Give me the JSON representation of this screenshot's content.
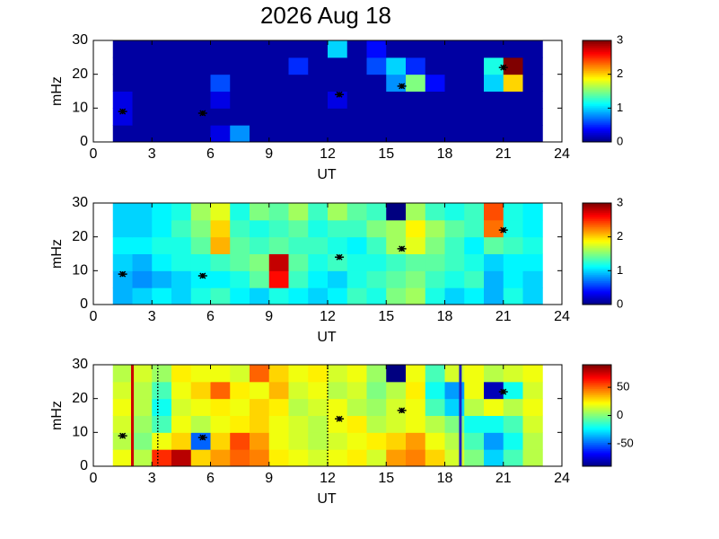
{
  "chart_data": [
    {
      "type": "heatmap",
      "title": "2026 Aug 18",
      "xlabel": "UT",
      "ylabel": "mHz",
      "colormap": "jet",
      "xlim": [
        0,
        24
      ],
      "xticks": [
        0,
        3,
        6,
        9,
        12,
        15,
        18,
        21,
        24
      ],
      "ylim": [
        0,
        30
      ],
      "yticks": [
        0,
        10,
        20,
        30
      ],
      "zlim": [
        0,
        3
      ],
      "zticks": [
        0,
        1,
        2,
        3
      ],
      "xbins": [
        1,
        2,
        3,
        4,
        5,
        6,
        7,
        8,
        9,
        10,
        11,
        12,
        13,
        14,
        15,
        16,
        17,
        18,
        19,
        20,
        21,
        22,
        23
      ],
      "ybins": [
        0,
        5,
        10,
        15,
        20,
        25,
        30
      ],
      "values": [
        [
          0.1,
          0.1,
          0.1,
          0.1,
          0.1,
          0.3,
          0.8,
          0.1,
          0.1,
          0.1,
          0.1,
          0.1,
          0.1,
          0.1,
          0.1,
          0.1,
          0.1,
          0.1,
          0.1,
          0.1,
          0.1,
          0.1
        ],
        [
          0.3,
          0.1,
          0.1,
          0.1,
          0.1,
          0.1,
          0.1,
          0.1,
          0.1,
          0.1,
          0.1,
          0.1,
          0.1,
          0.1,
          0.1,
          0.1,
          0.1,
          0.1,
          0.1,
          0.1,
          0.1,
          0.1
        ],
        [
          0.3,
          0.1,
          0.1,
          0.1,
          0.1,
          0.3,
          0.1,
          0.1,
          0.1,
          0.1,
          0.1,
          0.3,
          0.1,
          0.1,
          0.1,
          0.1,
          0.1,
          0.1,
          0.1,
          0.1,
          0.1,
          0.1
        ],
        [
          0.1,
          0.1,
          0.1,
          0.1,
          0.1,
          0.6,
          0.1,
          0.1,
          0.1,
          0.1,
          0.1,
          0.1,
          0.1,
          0.1,
          0.8,
          1.5,
          0.4,
          0.1,
          0.1,
          1.0,
          2.0,
          0.1
        ],
        [
          0.1,
          0.1,
          0.1,
          0.1,
          0.1,
          0.1,
          0.1,
          0.1,
          0.1,
          0.5,
          0.1,
          0.1,
          0.1,
          0.6,
          1.0,
          0.5,
          0.1,
          0.1,
          0.1,
          1.2,
          3.0,
          0.1
        ],
        [
          0.1,
          0.1,
          0.1,
          0.1,
          0.1,
          0.1,
          0.1,
          0.1,
          0.1,
          0.1,
          0.1,
          1.0,
          0.1,
          0.4,
          0.1,
          0.1,
          0.1,
          0.1,
          0.1,
          0.1,
          0.1,
          0.1
        ]
      ],
      "markers": {
        "x": [
          1.5,
          5.6,
          12.6,
          15.8,
          21.0
        ],
        "y": [
          9,
          8.5,
          14,
          16.5,
          22
        ],
        "color": "#000000"
      }
    },
    {
      "type": "heatmap",
      "xlabel": "UT",
      "ylabel": "mHz",
      "colormap": "jet",
      "xlim": [
        0,
        24
      ],
      "xticks": [
        0,
        3,
        6,
        9,
        12,
        15,
        18,
        21,
        24
      ],
      "ylim": [
        0,
        30
      ],
      "yticks": [
        0,
        10,
        20,
        30
      ],
      "zlim": [
        0,
        3
      ],
      "zticks": [
        0,
        1,
        2,
        3
      ],
      "xbins": [
        1,
        2,
        3,
        4,
        5,
        6,
        7,
        8,
        9,
        10,
        11,
        12,
        13,
        14,
        15,
        16,
        17,
        18,
        19,
        20,
        21,
        22,
        23
      ],
      "ybins": [
        0,
        5,
        10,
        15,
        20,
        25,
        30
      ],
      "values": [
        [
          0.9,
          1.0,
          1.1,
          1.0,
          1.2,
          1.3,
          1.1,
          1.0,
          1.2,
          1.1,
          1.0,
          1.1,
          1.3,
          1.2,
          1.5,
          1.6,
          1.2,
          1.0,
          1.1,
          0.9,
          1.2,
          1.0
        ],
        [
          0.9,
          0.8,
          0.9,
          1.0,
          1.1,
          1.1,
          1.2,
          1.4,
          2.6,
          1.3,
          1.1,
          1.0,
          1.2,
          1.3,
          1.4,
          1.5,
          1.3,
          1.2,
          1.3,
          0.9,
          1.1,
          1.0
        ],
        [
          1.0,
          0.9,
          1.1,
          1.2,
          1.2,
          1.3,
          1.4,
          1.5,
          2.8,
          1.4,
          1.2,
          1.3,
          1.2,
          1.2,
          1.3,
          1.4,
          1.4,
          1.3,
          1.2,
          1.0,
          1.1,
          1.1
        ],
        [
          1.1,
          1.1,
          1.2,
          1.2,
          1.4,
          2.1,
          1.4,
          1.3,
          1.4,
          1.3,
          1.3,
          1.2,
          1.1,
          1.3,
          1.6,
          1.8,
          1.5,
          1.3,
          1.1,
          1.4,
          1.3,
          1.2
        ],
        [
          1.0,
          1.0,
          1.1,
          1.3,
          1.5,
          2.0,
          1.3,
          1.2,
          1.3,
          1.4,
          1.2,
          1.3,
          1.3,
          1.5,
          1.6,
          1.9,
          1.6,
          1.4,
          1.3,
          2.3,
          1.2,
          1.1
        ],
        [
          1.0,
          1.0,
          1.1,
          1.2,
          1.6,
          1.8,
          1.2,
          1.5,
          1.4,
          1.6,
          1.3,
          1.6,
          1.4,
          1.3,
          0.0,
          1.6,
          1.3,
          1.2,
          1.3,
          2.4,
          1.2,
          1.1
        ]
      ],
      "markers": {
        "x": [
          1.5,
          5.6,
          12.6,
          15.8,
          21.0
        ],
        "y": [
          9,
          8.5,
          14,
          16.5,
          22
        ],
        "color": "#000000"
      }
    },
    {
      "type": "heatmap",
      "xlabel": "UT",
      "ylabel": "mHz",
      "colormap": "jet",
      "xlim": [
        0,
        24
      ],
      "xticks": [
        0,
        3,
        6,
        9,
        12,
        15,
        18,
        21,
        24
      ],
      "ylim": [
        0,
        30
      ],
      "yticks": [
        0,
        10,
        20,
        30
      ],
      "zlim": [
        -90,
        90
      ],
      "zticks": [
        -50,
        0,
        50
      ],
      "xbins": [
        1,
        2,
        3,
        4,
        5,
        6,
        7,
        8,
        9,
        10,
        11,
        12,
        13,
        14,
        15,
        16,
        17,
        18,
        19,
        20,
        21,
        22,
        23
      ],
      "ybins": [
        0,
        5,
        10,
        15,
        20,
        25,
        30
      ],
      "values": [
        [
          20,
          10,
          60,
          80,
          30,
          40,
          50,
          45,
          25,
          20,
          15,
          20,
          25,
          15,
          40,
          45,
          30,
          15,
          0,
          -30,
          -10,
          10
        ],
        [
          10,
          0,
          20,
          30,
          -50,
          30,
          55,
          40,
          20,
          15,
          10,
          15,
          20,
          25,
          30,
          40,
          20,
          10,
          -10,
          -40,
          -20,
          10
        ],
        [
          15,
          5,
          -10,
          20,
          10,
          20,
          25,
          30,
          20,
          15,
          10,
          20,
          25,
          10,
          15,
          20,
          10,
          0,
          -20,
          -20,
          -10,
          15
        ],
        [
          20,
          10,
          -20,
          15,
          20,
          25,
          20,
          30,
          25,
          10,
          15,
          20,
          10,
          5,
          15,
          20,
          -10,
          -30,
          10,
          20,
          10,
          20
        ],
        [
          15,
          10,
          -10,
          20,
          30,
          50,
          25,
          20,
          35,
          15,
          20,
          10,
          15,
          0,
          10,
          25,
          -20,
          -40,
          20,
          -80,
          -20,
          15
        ],
        [
          10,
          15,
          5,
          25,
          20,
          20,
          15,
          50,
          30,
          20,
          25,
          15,
          20,
          5,
          -90,
          20,
          -10,
          15,
          20,
          10,
          15,
          20
        ]
      ],
      "markers": {
        "x": [
          1.5,
          5.6,
          12.6,
          15.8,
          21.0
        ],
        "y": [
          9,
          8.5,
          14,
          16.5,
          22
        ],
        "color": "#000000"
      },
      "vlines": [
        {
          "x": 2.0,
          "color": "#cc0000",
          "style": "solid"
        },
        {
          "x": 3.3,
          "color": "#000000",
          "style": "dotted"
        },
        {
          "x": 12.0,
          "color": "#000000",
          "style": "dotted"
        },
        {
          "x": 18.8,
          "color": "#2020c0",
          "style": "solid"
        }
      ]
    }
  ]
}
